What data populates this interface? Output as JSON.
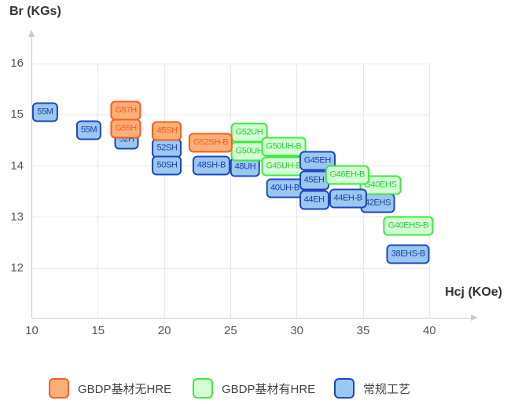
{
  "titles": {
    "y": "Br (KGs)",
    "x": "Hcj (KOe)"
  },
  "legend": [
    {
      "label": "GBDP基材无HRE",
      "key": "orange"
    },
    {
      "label": "GBDP基材有HRE",
      "key": "green"
    },
    {
      "label": "常规工艺",
      "key": "blue"
    }
  ],
  "colors": {
    "orange": {
      "fill": "#fbb07a",
      "stroke": "#ff5b1c",
      "text": "#ff5b1c"
    },
    "green": {
      "fill": "#d4ffd4",
      "stroke": "#3fe83f",
      "text": "#2bcc3e"
    },
    "blue": {
      "fill": "#9bc7f3",
      "stroke": "#1e46be",
      "text": "#1b3ea8"
    },
    "grid": "#e8e8e8",
    "axis": "#c9c9c9",
    "tick_text": "#555555",
    "title_text": "#333333"
  },
  "chart_data": {
    "type": "scatter",
    "title": "",
    "xlabel": "Hcj (KOe)",
    "ylabel": "Br (KGs)",
    "xlim": [
      10,
      40
    ],
    "ylim": [
      12,
      16
    ],
    "x_ticks": [
      10,
      15,
      20,
      25,
      30,
      35,
      40
    ],
    "y_ticks": [
      12,
      13,
      14,
      15,
      16
    ],
    "grid": true,
    "legend_position": "bottom",
    "series": [
      {
        "name": "GBDP基材无HRE",
        "key": "orange",
        "points": [
          {
            "label": "G57H",
            "hcj": 17.1,
            "br": 15.08,
            "z": 5
          },
          {
            "label": "G55H",
            "hcj": 17.1,
            "br": 14.73,
            "z": 5
          },
          {
            "label": "45SH",
            "hcj": 20.2,
            "br": 14.68,
            "z": 5
          },
          {
            "label": "G52SH-B",
            "hcj": 23.5,
            "br": 14.45,
            "z": 5
          }
        ]
      },
      {
        "name": "GBDP基材有HRE",
        "key": "green",
        "points": [
          {
            "label": "G52UH",
            "hcj": 26.4,
            "br": 14.65,
            "z": 2
          },
          {
            "label": "G50UH",
            "hcj": 26.4,
            "br": 14.28,
            "z": 2
          },
          {
            "label": "G50UH-B",
            "hcj": 29.0,
            "br": 14.37,
            "z": 2
          },
          {
            "label": "G45UH-B",
            "hcj": 29.0,
            "br": 14.0,
            "z": 2
          },
          {
            "label": "G40EHS",
            "hcj": 36.3,
            "br": 13.62,
            "z": 4
          },
          {
            "label": "G46EH-B",
            "hcj": 33.8,
            "br": 13.82,
            "z": 5
          },
          {
            "label": "G40EHS-B",
            "hcj": 38.4,
            "br": 12.82,
            "z": 2
          }
        ]
      },
      {
        "name": "常规工艺",
        "key": "blue",
        "points": [
          {
            "label": "55M",
            "hcj": 11.0,
            "br": 15.05,
            "z": 1
          },
          {
            "label": "55M",
            "hcj": 14.3,
            "br": 14.7,
            "z": 1
          },
          {
            "label": "52H",
            "hcj": 17.15,
            "br": 14.52,
            "z": 1
          },
          {
            "label": "52SH",
            "hcj": 20.2,
            "br": 14.34,
            "z": 1
          },
          {
            "label": "50SH",
            "hcj": 20.2,
            "br": 14.01,
            "z": 1
          },
          {
            "label": "48SH-B",
            "hcj": 23.55,
            "br": 14.01,
            "z": 1
          },
          {
            "label": "48UH",
            "hcj": 26.1,
            "br": 13.97,
            "z": 1
          },
          {
            "label": "40UH-B",
            "hcj": 29.1,
            "br": 13.56,
            "z": 1
          },
          {
            "label": "G45EH",
            "hcj": 31.55,
            "br": 14.1,
            "z": 3
          },
          {
            "label": "45EH",
            "hcj": 31.3,
            "br": 13.72,
            "z": 3
          },
          {
            "label": "44EH",
            "hcj": 31.3,
            "br": 13.33,
            "z": 3
          },
          {
            "label": "42EHS",
            "hcj": 36.1,
            "br": 13.27,
            "z": 3
          },
          {
            "label": "44EH-B",
            "hcj": 33.85,
            "br": 13.36,
            "z": 5
          },
          {
            "label": "38EHS-B",
            "hcj": 38.4,
            "br": 12.27,
            "z": 1
          }
        ]
      }
    ]
  }
}
